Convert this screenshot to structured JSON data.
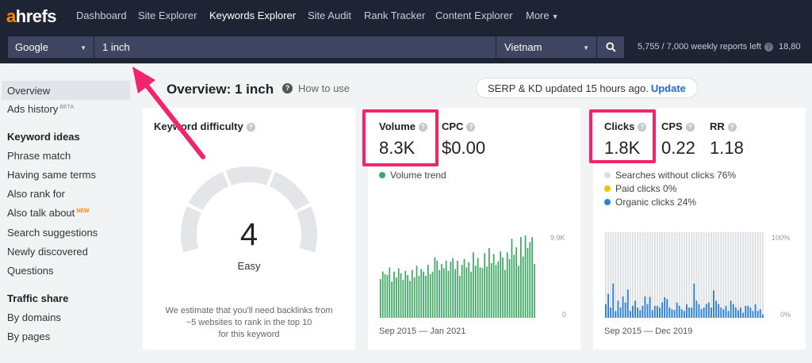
{
  "nav": {
    "logo_a": "a",
    "logo_rest": "hrefs",
    "items": [
      "Dashboard",
      "Site Explorer",
      "Keywords Explorer",
      "Site Audit",
      "Rank Tracker",
      "Content Explorer",
      "More"
    ]
  },
  "search": {
    "engine": "Google",
    "query": "1 inch",
    "country": "Vietnam",
    "reports_left": "5,755 / 7,000 weekly reports left",
    "reports_extra": "18,80"
  },
  "sidebar": {
    "overview": "Overview",
    "ads_history": "Ads history",
    "ads_badge": "BETA",
    "keyword_ideas": "Keyword ideas",
    "phrase_match": "Phrase match",
    "same_terms": "Having same terms",
    "also_rank": "Also rank for",
    "also_talk": "Also talk about",
    "also_talk_badge": "NEW",
    "suggestions": "Search suggestions",
    "newly": "Newly discovered",
    "questions": "Questions",
    "traffic_share": "Traffic share",
    "by_domains": "By domains",
    "by_pages": "By pages"
  },
  "header": {
    "title": "Overview: 1 inch",
    "how_to": "How to use",
    "serp_status": "SERP & KD updated 15 hours ago.",
    "update": "Update"
  },
  "kd_card": {
    "label": "Keyword difficulty",
    "score": "4",
    "score_value": 4,
    "rating": "Easy",
    "note_1": "We estimate that you'll need backlinks from",
    "note_2": "~5 websites to rank in the top 10",
    "note_3": "for this keyword"
  },
  "volume_card": {
    "volume_label": "Volume",
    "volume_value": "8.3K",
    "cpc_label": "CPC",
    "cpc_value": "$0.00",
    "trend_label": "Volume trend",
    "axis_top": "9.9K",
    "axis_bottom": "0",
    "range": "Sep 2015 — Jan 2021"
  },
  "clicks_card": {
    "clicks_label": "Clicks",
    "clicks_value": "1.8K",
    "cps_label": "CPS",
    "cps_value": "0.22",
    "rr_label": "RR",
    "rr_value": "1.18",
    "legend_no_clicks": "Searches without clicks 76%",
    "legend_paid": "Paid clicks 0%",
    "legend_organic": "Organic clicks 24%",
    "axis_top": "100%",
    "axis_bottom": "0%",
    "range": "Sep 2015 — Dec 2019"
  },
  "colors": {
    "nav_bg": "#1f2435",
    "accent_orange": "#ff8800",
    "volume_green": "#3aa860",
    "organic_blue": "#2f7fd4",
    "paid_yellow": "#f2c200",
    "no_click_gray": "#dedfe2",
    "highlight_pink": "#f0256b"
  },
  "chart_data": [
    {
      "type": "bar",
      "series_name": "Volume trend",
      "ylim": [
        0,
        9900
      ],
      "x_range": [
        "Sep 2015",
        "Jan 2021"
      ],
      "values": [
        4600,
        5500,
        5200,
        5100,
        6000,
        4300,
        5500,
        4800,
        5900,
        5300,
        4500,
        5600,
        5100,
        4400,
        5700,
        4800,
        6200,
        5000,
        5800,
        5500,
        5000,
        6300,
        5200,
        5500,
        7200,
        6800,
        5700,
        6400,
        5900,
        6800,
        5600,
        6700,
        7100,
        5800,
        6800,
        5000,
        6300,
        7000,
        6000,
        6600,
        5500,
        7800,
        6200,
        7100,
        6000,
        5900,
        7700,
        6100,
        8300,
        6500,
        7600,
        6300,
        6700,
        7900,
        7200,
        5700,
        7800,
        7000,
        9400,
        7500,
        8400,
        6200,
        9600,
        7300,
        9800,
        8300,
        9000,
        9600,
        6400
      ]
    },
    {
      "type": "bar",
      "stacked": true,
      "ylim": [
        0,
        100
      ],
      "x_range": [
        "Sep 2015",
        "Dec 2019"
      ],
      "series": [
        {
          "name": "Organic clicks",
          "values": [
            16,
            28,
            12,
            40,
            8,
            20,
            12,
            25,
            18,
            33,
            8,
            14,
            20,
            12,
            9,
            14,
            25,
            16,
            24,
            9,
            14,
            14,
            12,
            18,
            24,
            22,
            12,
            10,
            9,
            18,
            14,
            10,
            8,
            16,
            12,
            12,
            40,
            20,
            16,
            10,
            12,
            16,
            18,
            12,
            32,
            20,
            16,
            12,
            10,
            14,
            8,
            20,
            16,
            12,
            9,
            12,
            6,
            14,
            14,
            12,
            8,
            16,
            8,
            10,
            4
          ]
        },
        {
          "name": "Paid clicks",
          "values": [
            0,
            0,
            0,
            0,
            0,
            0,
            0,
            0,
            0,
            0,
            0,
            0,
            0,
            0,
            0,
            0,
            0,
            0,
            2,
            0,
            0,
            0,
            0,
            0,
            0,
            0,
            0,
            0,
            0,
            0,
            0,
            0,
            0,
            0,
            0,
            0,
            0,
            0,
            0,
            0,
            0,
            0,
            0,
            0,
            0,
            0,
            0,
            0,
            0,
            0,
            0,
            0,
            0,
            0,
            0,
            0,
            0,
            0,
            0,
            0,
            0,
            0,
            0,
            0,
            0
          ]
        }
      ]
    }
  ]
}
